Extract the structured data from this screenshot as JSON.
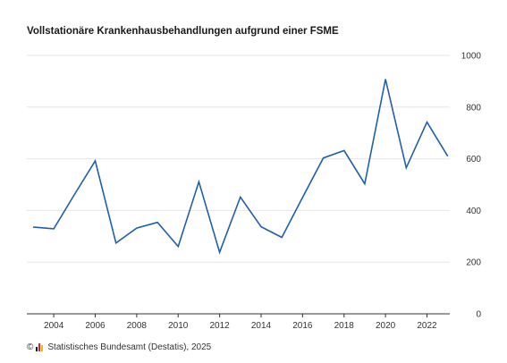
{
  "title": "Vollstationäre Krankenhausbehandlungen aufgrund einer FSME",
  "footer": {
    "copyright_symbol": "©",
    "source": "Statistisches Bundesamt (Destatis), 2025",
    "logo_icon": "destatis-logo-icon"
  },
  "colors": {
    "line": "#1f5fad",
    "grid": "#e6e6e6",
    "axis": "#333333"
  },
  "chart_data": {
    "type": "line",
    "title": "Vollstationäre Krankenhausbehandlungen aufgrund einer FSME",
    "xlabel": "",
    "ylabel": "",
    "x": [
      2003,
      2004,
      2005,
      2006,
      2007,
      2008,
      2009,
      2010,
      2011,
      2012,
      2013,
      2014,
      2015,
      2016,
      2017,
      2018,
      2019,
      2020,
      2021,
      2022,
      2023
    ],
    "series": [
      {
        "values": [
          336,
          329,
          462,
          592,
          274,
          332,
          354,
          261,
          511,
          238,
          452,
          337,
          296,
          451,
          603,
          632,
          503,
          908,
          565,
          742,
          610
        ]
      }
    ],
    "xlim": [
      2002.7,
      2023.1
    ],
    "ylim": [
      0,
      1000
    ],
    "xticks": [
      2004,
      2006,
      2008,
      2010,
      2012,
      2014,
      2016,
      2018,
      2020,
      2022
    ],
    "yticks": [
      0,
      200,
      400,
      600,
      800,
      1000
    ],
    "yaxis_side": "right",
    "grid": "horizontal",
    "legend": "none"
  }
}
